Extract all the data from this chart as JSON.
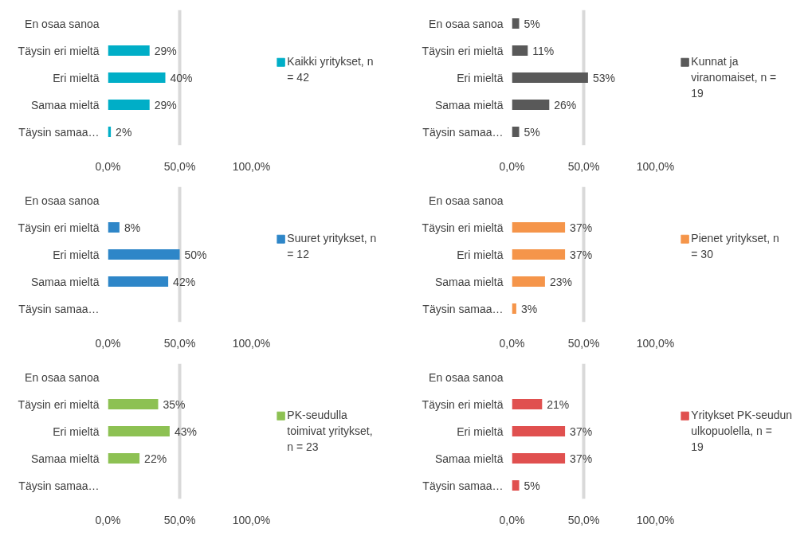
{
  "chart_data": [
    {
      "type": "bar",
      "orientation": "horizontal",
      "categories": [
        "En osaa sanoa",
        "Täysin eri mieltä",
        "Eri mieltä",
        "Samaa mieltä",
        "Täysin samaa…"
      ],
      "series": [
        {
          "name": "Kaikki yritykset, n = 42",
          "color": "#00aec7",
          "values": [
            null,
            29,
            40,
            29,
            2
          ],
          "value_labels": [
            null,
            "29%",
            "40%",
            "29%",
            "2%"
          ]
        }
      ],
      "xlim": [
        0,
        100
      ],
      "xticks": [
        {
          "value": 0,
          "label": "0,0%"
        },
        {
          "value": 50,
          "label": "50,0%"
        },
        {
          "value": 100,
          "label": "100,0%"
        }
      ],
      "grid": "x",
      "legend": "right"
    },
    {
      "type": "bar",
      "orientation": "horizontal",
      "categories": [
        "En osaa sanoa",
        "Täysin eri mieltä",
        "Eri mieltä",
        "Samaa mieltä",
        "Täysin samaa…"
      ],
      "series": [
        {
          "name": "Kunnat ja viranomaiset, n = 19",
          "color": "#595959",
          "values": [
            5,
            11,
            53,
            26,
            5
          ],
          "value_labels": [
            "5%",
            "11%",
            "53%",
            "26%",
            "5%"
          ]
        }
      ],
      "xlim": [
        0,
        100
      ],
      "xticks": [
        {
          "value": 0,
          "label": "0,0%"
        },
        {
          "value": 50,
          "label": "50,0%"
        },
        {
          "value": 100,
          "label": "100,0%"
        }
      ],
      "grid": "x",
      "legend": "right"
    },
    {
      "type": "bar",
      "orientation": "horizontal",
      "categories": [
        "En osaa sanoa",
        "Täysin eri mieltä",
        "Eri mieltä",
        "Samaa mieltä",
        "Täysin samaa…"
      ],
      "series": [
        {
          "name": "Suuret yritykset, n = 12",
          "color": "#2e86c8",
          "values": [
            null,
            8,
            50,
            42,
            null
          ],
          "value_labels": [
            null,
            "8%",
            "50%",
            "42%",
            null
          ]
        }
      ],
      "xlim": [
        0,
        100
      ],
      "xticks": [
        {
          "value": 0,
          "label": "0,0%"
        },
        {
          "value": 50,
          "label": "50,0%"
        },
        {
          "value": 100,
          "label": "100,0%"
        }
      ],
      "grid": "x",
      "legend": "right"
    },
    {
      "type": "bar",
      "orientation": "horizontal",
      "categories": [
        "En osaa sanoa",
        "Täysin eri mieltä",
        "Eri mieltä",
        "Samaa mieltä",
        "Täysin samaa…"
      ],
      "series": [
        {
          "name": "Pienet yritykset, n = 30",
          "color": "#f5954a",
          "values": [
            null,
            37,
            37,
            23,
            3
          ],
          "value_labels": [
            null,
            "37%",
            "37%",
            "23%",
            "3%"
          ]
        }
      ],
      "xlim": [
        0,
        100
      ],
      "xticks": [
        {
          "value": 0,
          "label": "0,0%"
        },
        {
          "value": 50,
          "label": "50,0%"
        },
        {
          "value": 100,
          "label": "100,0%"
        }
      ],
      "grid": "x",
      "legend": "right"
    },
    {
      "type": "bar",
      "orientation": "horizontal",
      "categories": [
        "En osaa sanoa",
        "Täysin eri mieltä",
        "Eri mieltä",
        "Samaa mieltä",
        "Täysin samaa…"
      ],
      "series": [
        {
          "name": "PK-seudulla toimivat yritykset, n =  23",
          "color": "#8dc153",
          "values": [
            null,
            35,
            43,
            22,
            null
          ],
          "value_labels": [
            null,
            "35%",
            "43%",
            "22%",
            null
          ]
        }
      ],
      "xlim": [
        0,
        100
      ],
      "xticks": [
        {
          "value": 0,
          "label": "0,0%"
        },
        {
          "value": 50,
          "label": "50,0%"
        },
        {
          "value": 100,
          "label": "100,0%"
        }
      ],
      "grid": "x",
      "legend": "right"
    },
    {
      "type": "bar",
      "orientation": "horizontal",
      "categories": [
        "En osaa sanoa",
        "Täysin eri mieltä",
        "Eri mieltä",
        "Samaa mieltä",
        "Täysin samaa…"
      ],
      "series": [
        {
          "name": "Yritykset PK-seudun ulkopuolella, n =  19",
          "color": "#e0504f",
          "values": [
            null,
            21,
            37,
            37,
            5
          ],
          "value_labels": [
            null,
            "21%",
            "37%",
            "37%",
            "5%"
          ]
        }
      ],
      "xlim": [
        0,
        100
      ],
      "xticks": [
        {
          "value": 0,
          "label": "0,0%"
        },
        {
          "value": 50,
          "label": "50,0%"
        },
        {
          "value": 100,
          "label": "100,0%"
        }
      ],
      "grid": "x",
      "legend": "right"
    }
  ]
}
